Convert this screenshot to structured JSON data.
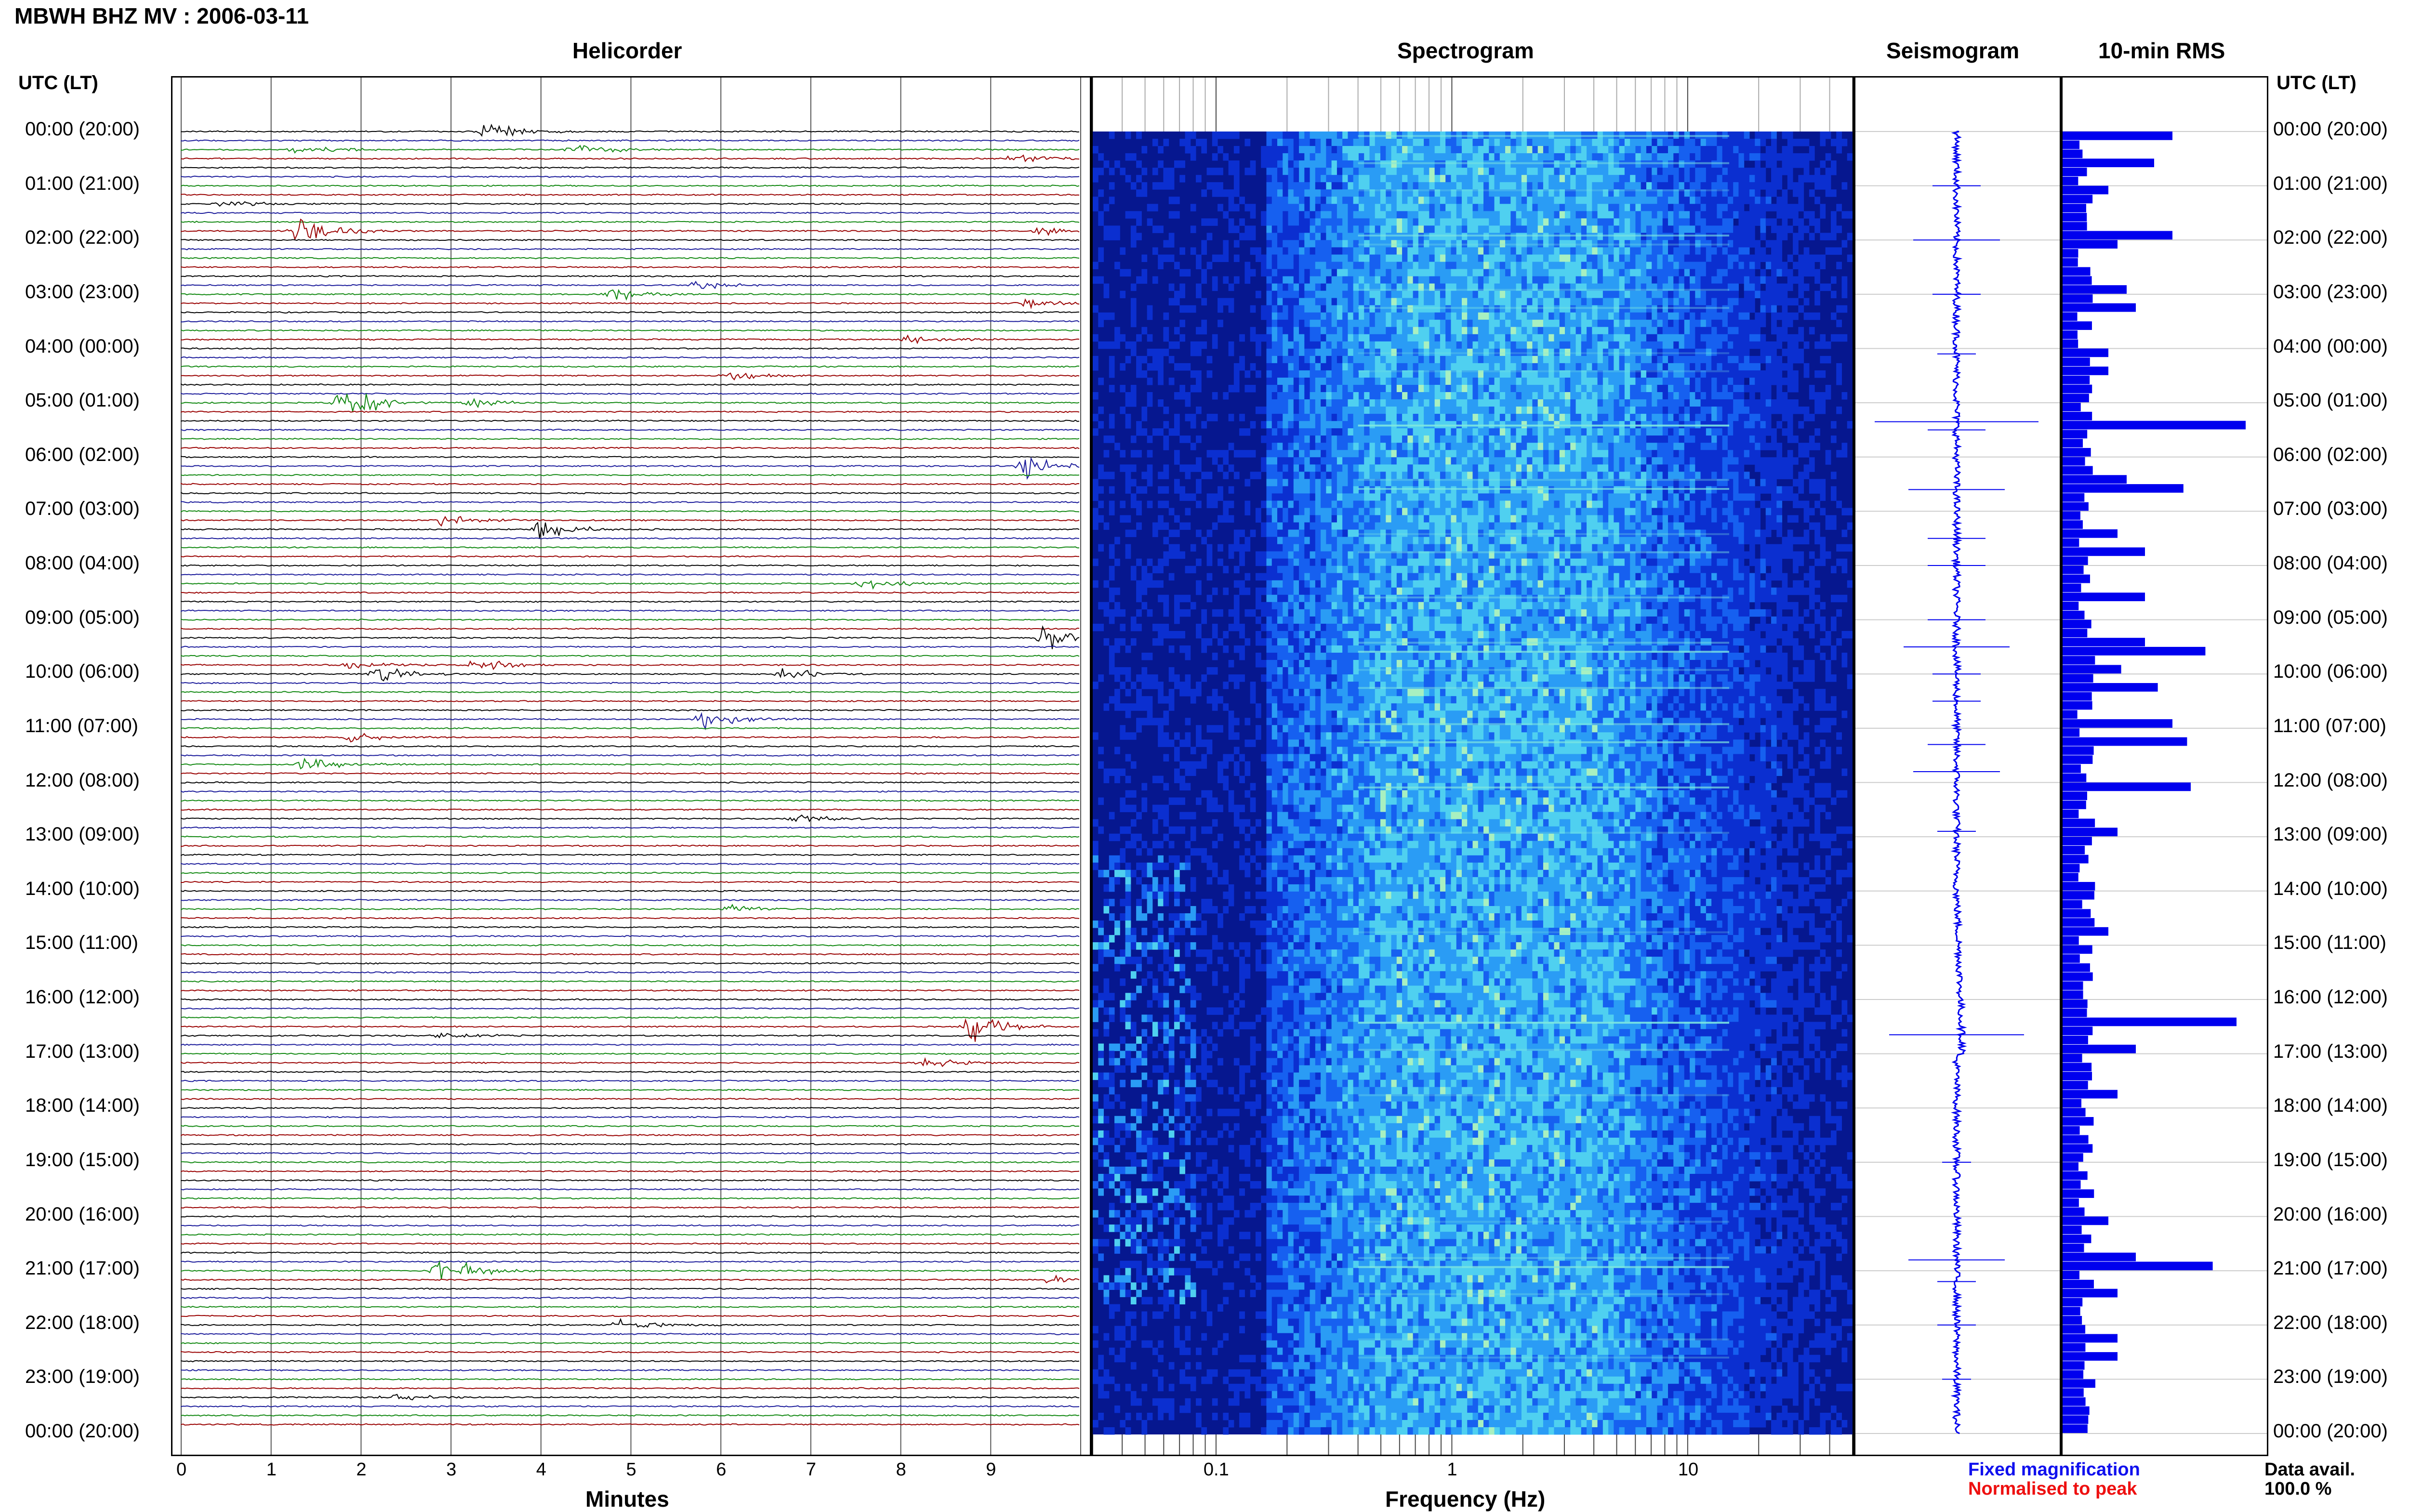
{
  "header": {
    "title": "MBWH BHZ MV : 2006-03-11",
    "utc_label_left": "UTC (LT)",
    "utc_label_right": "UTC (LT)"
  },
  "panels": {
    "helicorder": "Helicorder",
    "spectrogram": "Spectrogram",
    "seismogram": "Seismogram",
    "rms": "10-min RMS"
  },
  "axes": {
    "minutes_label": "Minutes",
    "frequency_label": "Frequency (Hz)",
    "minute_ticks": [
      "0",
      "1",
      "2",
      "3",
      "4",
      "5",
      "6",
      "7",
      "8",
      "9"
    ],
    "frequency_ticks": [
      "0.1",
      "1",
      "10"
    ]
  },
  "time_labels": [
    "00:00 (20:00)",
    "01:00 (21:00)",
    "02:00 (22:00)",
    "03:00 (23:00)",
    "04:00 (00:00)",
    "05:00 (01:00)",
    "06:00 (02:00)",
    "07:00 (03:00)",
    "08:00 (04:00)",
    "09:00 (05:00)",
    "10:00 (06:00)",
    "11:00 (07:00)",
    "12:00 (08:00)",
    "13:00 (09:00)",
    "14:00 (10:00)",
    "15:00 (11:00)",
    "16:00 (12:00)",
    "17:00 (13:00)",
    "18:00 (14:00)",
    "19:00 (15:00)",
    "20:00 (16:00)",
    "21:00 (17:00)",
    "22:00 (18:00)",
    "23:00 (19:00)",
    "00:00 (20:00)"
  ],
  "legend": {
    "fixed": "Fixed magnification",
    "normalised": "Normalised to peak",
    "fixed_color": "#1010ee",
    "normalised_color": "#ee1010",
    "data_avail_label": "Data avail.",
    "data_avail_value": "100.0 %"
  },
  "colors": {
    "trace_cycle": [
      "#000000",
      "#1a1a9a",
      "#118811",
      "#990000"
    ],
    "rms_bar": "#0000ee",
    "seismogram": "#0000ee"
  },
  "chart_data": [
    {
      "type": "line",
      "title": "Helicorder",
      "xlabel": "Minutes",
      "xlim": [
        0,
        10
      ],
      "rows": 144,
      "row_minutes": 10,
      "events": [
        {
          "row": 0,
          "minute": 3.4,
          "amp": 0.9
        },
        {
          "row": 2,
          "minute": 1.3,
          "amp": 0.4
        },
        {
          "row": 2,
          "minute": 4.4,
          "amp": 0.6
        },
        {
          "row": 3,
          "minute": 9.2,
          "amp": 0.5
        },
        {
          "row": 8,
          "minute": 0.5,
          "amp": 0.3
        },
        {
          "row": 11,
          "minute": 1.3,
          "amp": 1.2
        },
        {
          "row": 11,
          "minute": 9.6,
          "amp": 0.5
        },
        {
          "row": 17,
          "minute": 5.7,
          "amp": 0.4
        },
        {
          "row": 18,
          "minute": 4.8,
          "amp": 0.5
        },
        {
          "row": 19,
          "minute": 9.4,
          "amp": 0.6
        },
        {
          "row": 23,
          "minute": 8.1,
          "amp": 0.4
        },
        {
          "row": 27,
          "minute": 6.1,
          "amp": 0.4
        },
        {
          "row": 30,
          "minute": 1.8,
          "amp": 1.6
        },
        {
          "row": 30,
          "minute": 3.2,
          "amp": 0.4
        },
        {
          "row": 37,
          "minute": 9.4,
          "amp": 1.0
        },
        {
          "row": 43,
          "minute": 2.9,
          "amp": 0.6
        },
        {
          "row": 44,
          "minute": 4.0,
          "amp": 1.0
        },
        {
          "row": 50,
          "minute": 7.6,
          "amp": 0.5
        },
        {
          "row": 56,
          "minute": 9.6,
          "amp": 1.3
        },
        {
          "row": 59,
          "minute": 3.3,
          "amp": 0.5
        },
        {
          "row": 59,
          "minute": 1.9,
          "amp": 0.4
        },
        {
          "row": 60,
          "minute": 2.2,
          "amp": 0.6
        },
        {
          "row": 60,
          "minute": 6.7,
          "amp": 0.5
        },
        {
          "row": 65,
          "minute": 5.8,
          "amp": 1.1
        },
        {
          "row": 67,
          "minute": 1.9,
          "amp": 0.5
        },
        {
          "row": 70,
          "minute": 1.4,
          "amp": 1.1
        },
        {
          "row": 76,
          "minute": 6.8,
          "amp": 0.5
        },
        {
          "row": 86,
          "minute": 6.1,
          "amp": 0.4
        },
        {
          "row": 99,
          "minute": 8.8,
          "amp": 1.3
        },
        {
          "row": 100,
          "minute": 2.9,
          "amp": 0.4
        },
        {
          "row": 103,
          "minute": 8.3,
          "amp": 0.5
        },
        {
          "row": 126,
          "minute": 2.9,
          "amp": 1.3
        },
        {
          "row": 127,
          "minute": 9.7,
          "amp": 0.6
        },
        {
          "row": 132,
          "minute": 4.9,
          "amp": 0.5
        },
        {
          "row": 140,
          "minute": 2.3,
          "amp": 0.4
        }
      ]
    },
    {
      "type": "heatmap",
      "title": "Spectrogram",
      "xlabel": "Frequency (Hz)",
      "x_scale": "log",
      "xlim": [
        0.03,
        50
      ],
      "x_ticks": [
        0.1,
        1,
        10
      ]
    },
    {
      "type": "line",
      "title": "Seismogram",
      "spikes": [
        {
          "hour": 1.0,
          "amp": 0.25
        },
        {
          "hour": 2.0,
          "amp": 0.45
        },
        {
          "hour": 3.0,
          "amp": 0.25
        },
        {
          "hour": 4.1,
          "amp": 0.2
        },
        {
          "hour": 5.35,
          "amp": 0.85
        },
        {
          "hour": 5.5,
          "amp": 0.3
        },
        {
          "hour": 6.6,
          "amp": 0.5
        },
        {
          "hour": 7.5,
          "amp": 0.3
        },
        {
          "hour": 8.0,
          "amp": 0.3
        },
        {
          "hour": 9.0,
          "amp": 0.3
        },
        {
          "hour": 9.5,
          "amp": 0.55
        },
        {
          "hour": 10.0,
          "amp": 0.25
        },
        {
          "hour": 10.5,
          "amp": 0.25
        },
        {
          "hour": 11.3,
          "amp": 0.3
        },
        {
          "hour": 11.8,
          "amp": 0.45
        },
        {
          "hour": 12.9,
          "amp": 0.2
        },
        {
          "hour": 16.65,
          "amp": 0.7
        },
        {
          "hour": 19.0,
          "amp": 0.15
        },
        {
          "hour": 20.8,
          "amp": 0.5
        },
        {
          "hour": 21.2,
          "amp": 0.2
        },
        {
          "hour": 22.0,
          "amp": 0.2
        },
        {
          "hour": 23.0,
          "amp": 0.15
        }
      ]
    },
    {
      "type": "bar",
      "title": "10-min RMS",
      "orientation": "horizontal",
      "bins": 144,
      "base": 0.08,
      "peaks": [
        {
          "bin": 0,
          "value": 0.6
        },
        {
          "bin": 3,
          "value": 0.5
        },
        {
          "bin": 6,
          "value": 0.25
        },
        {
          "bin": 11,
          "value": 0.6
        },
        {
          "bin": 12,
          "value": 0.3
        },
        {
          "bin": 17,
          "value": 0.35
        },
        {
          "bin": 19,
          "value": 0.4
        },
        {
          "bin": 24,
          "value": 0.25
        },
        {
          "bin": 26,
          "value": 0.25
        },
        {
          "bin": 32,
          "value": 1.0
        },
        {
          "bin": 38,
          "value": 0.35
        },
        {
          "bin": 39,
          "value": 0.66
        },
        {
          "bin": 44,
          "value": 0.3
        },
        {
          "bin": 46,
          "value": 0.45
        },
        {
          "bin": 51,
          "value": 0.45
        },
        {
          "bin": 56,
          "value": 0.45
        },
        {
          "bin": 57,
          "value": 0.78
        },
        {
          "bin": 59,
          "value": 0.32
        },
        {
          "bin": 61,
          "value": 0.52
        },
        {
          "bin": 65,
          "value": 0.6
        },
        {
          "bin": 67,
          "value": 0.68
        },
        {
          "bin": 72,
          "value": 0.7
        },
        {
          "bin": 77,
          "value": 0.3
        },
        {
          "bin": 88,
          "value": 0.25
        },
        {
          "bin": 98,
          "value": 0.95
        },
        {
          "bin": 101,
          "value": 0.4
        },
        {
          "bin": 106,
          "value": 0.3
        },
        {
          "bin": 120,
          "value": 0.25
        },
        {
          "bin": 124,
          "value": 0.4
        },
        {
          "bin": 125,
          "value": 0.82
        },
        {
          "bin": 128,
          "value": 0.3
        },
        {
          "bin": 133,
          "value": 0.3
        },
        {
          "bin": 135,
          "value": 0.3
        }
      ]
    }
  ]
}
